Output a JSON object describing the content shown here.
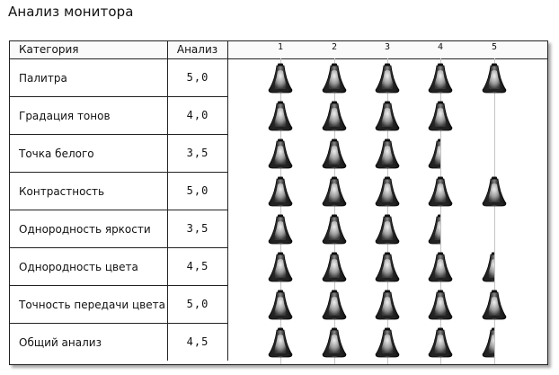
{
  "window": {
    "title": "Анализ монитора"
  },
  "table": {
    "headers": {
      "category": "Категория",
      "score": "Анализ",
      "scale": [
        "1",
        "2",
        "3",
        "4",
        "5"
      ]
    },
    "max_rating": 5,
    "icon": "bell-rating-icon",
    "rows": [
      {
        "category": "Палитра",
        "score": "5,0",
        "rating": 5.0
      },
      {
        "category": "Градация тонов",
        "score": "4,0",
        "rating": 4.0
      },
      {
        "category": "Точка белого",
        "score": "3,5",
        "rating": 3.5
      },
      {
        "category": "Контрастность",
        "score": "5,0",
        "rating": 5.0
      },
      {
        "category": "Однородность яркости",
        "score": "3,5",
        "rating": 3.5
      },
      {
        "category": "Однородность цвета",
        "score": "4,5",
        "rating": 4.5
      },
      {
        "category": "Точность передачи цвета",
        "score": "5,0",
        "rating": 5.0
      },
      {
        "category": "Общий анализ",
        "score": "4,5",
        "rating": 4.5
      }
    ]
  },
  "colors": {
    "border": "#222222",
    "scale_line": "#c4c4c4",
    "icon_dark": "#1a1a1a",
    "icon_light": "#e8e8e8"
  }
}
